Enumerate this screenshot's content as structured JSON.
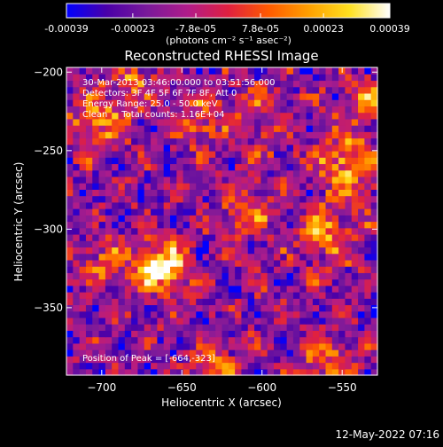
{
  "chart_data": {
    "type": "heatmap",
    "title": "Reconstructed RHESSI Image",
    "xlabel": "Heliocentric X (arcsec)",
    "ylabel": "Heliocentric Y (arcsec)",
    "xlim": [
      -722,
      -528
    ],
    "ylim": [
      -393,
      -197
    ],
    "x_ticks": [
      -700,
      -650,
      -600,
      -550
    ],
    "y_ticks": [
      -350,
      -300,
      -250,
      -200
    ],
    "colorbar": {
      "range": [
        -0.00039,
        0.00039
      ],
      "tick_values": [
        -0.00039,
        -0.00023,
        -7.8e-05,
        7.8e-05,
        0.00023,
        0.00039
      ],
      "tick_labels": [
        "-0.00039",
        "-0.00023",
        "-7.8e-05",
        "7.8e-05",
        "0.00023",
        "0.00039"
      ],
      "units_label": "(photons cm⁻² s⁻¹ asec⁻²)"
    },
    "annotations": {
      "time": "30-Mar-2013 03:46:00.000 to 03:51:56.000",
      "detectors": "Detectors: 3F 4F 5F 6F 7F 8F, Att 0",
      "energy": "Energy Range: 25.0 - 50.0 keV",
      "clean": "Clean     Total counts: 1.16E+04",
      "peak": "Position of Peak = [-664,-323]"
    },
    "peak": {
      "x": -664,
      "y": -323,
      "value": 0.00039
    },
    "sources": [
      {
        "x": -664,
        "y": -323,
        "amp": 1.0,
        "sigma": 11
      },
      {
        "x": -700,
        "y": -232,
        "amp": 0.55,
        "sigma": 12
      },
      {
        "x": -545,
        "y": -258,
        "amp": 0.65,
        "sigma": 14
      },
      {
        "x": -560,
        "y": -302,
        "amp": 0.55,
        "sigma": 12
      },
      {
        "x": -535,
        "y": -218,
        "amp": 0.5,
        "sigma": 10
      },
      {
        "x": -640,
        "y": -230,
        "amp": 0.4,
        "sigma": 12
      },
      {
        "x": -610,
        "y": -290,
        "amp": 0.4,
        "sigma": 12
      },
      {
        "x": -700,
        "y": -320,
        "amp": 0.35,
        "sigma": 10
      },
      {
        "x": -630,
        "y": -385,
        "amp": 0.45,
        "sigma": 10
      },
      {
        "x": -560,
        "y": -385,
        "amp": 0.5,
        "sigma": 12
      },
      {
        "x": -680,
        "y": -205,
        "amp": 0.4,
        "sigma": 10
      },
      {
        "x": -600,
        "y": -230,
        "amp": 0.3,
        "sigma": 14
      }
    ],
    "colormap": [
      "#0000ff",
      "#4a00a8",
      "#7a1a9a",
      "#b01c8a",
      "#e02040",
      "#ff5a00",
      "#ffa000",
      "#ffe020",
      "#ffffff"
    ]
  },
  "footer": {
    "timestamp": "12-May-2022 07:16"
  }
}
